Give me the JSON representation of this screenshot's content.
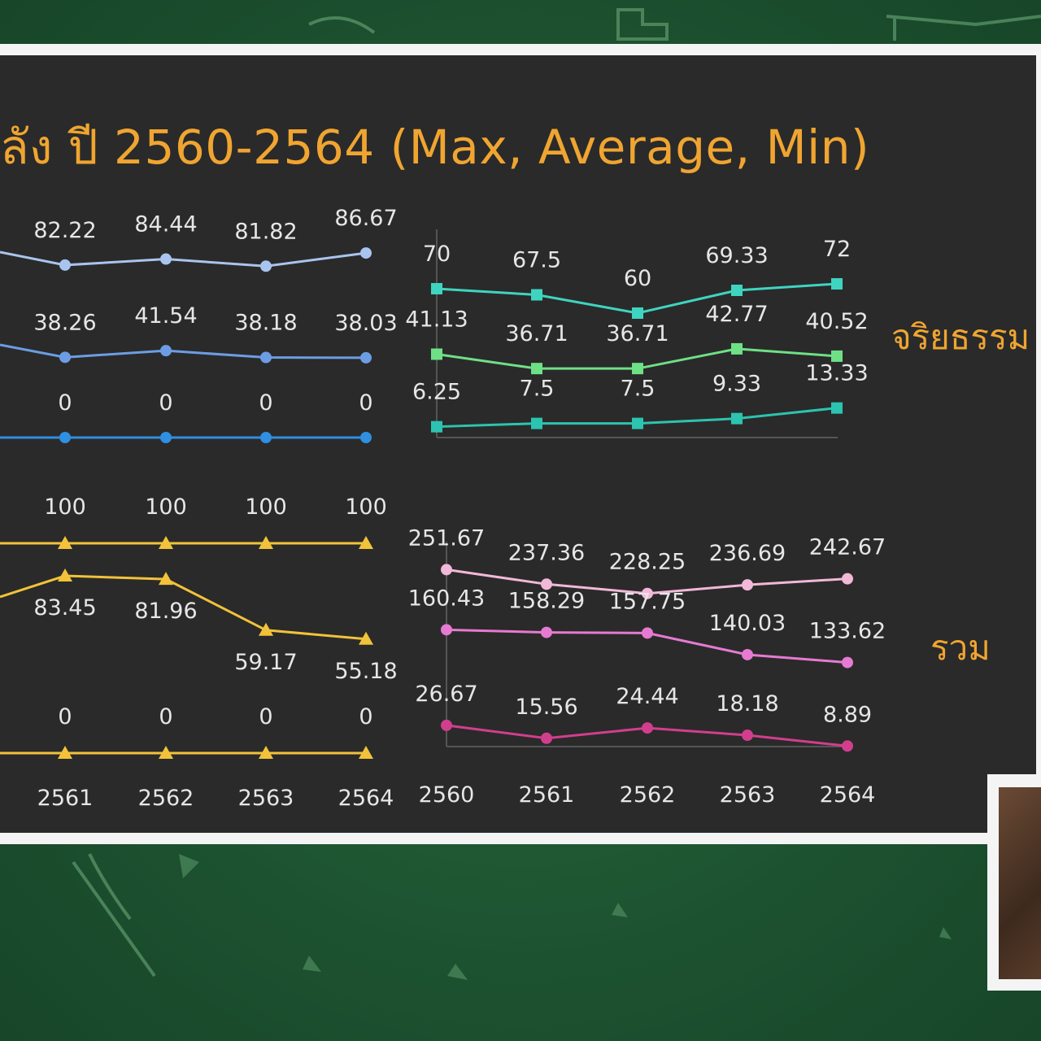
{
  "title": "ลัง ปี 2560-2564 (Max, Average, Min)",
  "colors": {
    "title": "#f0a531",
    "panel": "#2a2a2a",
    "tl_max": "#a9c4ee",
    "tl_avg": "#6c9de4",
    "tl_min": "#2f8fe0",
    "bl": "#f2c23a",
    "tr_max": "#3fd4c0",
    "tr_avg": "#6ee086",
    "tr_min": "#2cc4b0",
    "br_max": "#f2b8d8",
    "br_avg": "#e67ad2",
    "br_min": "#d23e8e"
  },
  "labels": {
    "ethics": "จริยธรรม",
    "total": "รวม"
  },
  "chart_data": [
    {
      "type": "line",
      "categories": [
        "2561",
        "2562",
        "2563",
        "2564"
      ],
      "marker": "circle",
      "series": [
        {
          "key": "max",
          "values": [
            82.22,
            84.44,
            81.82,
            86.67
          ]
        },
        {
          "key": "avg",
          "values": [
            38.26,
            41.54,
            38.18,
            38.03
          ]
        },
        {
          "key": "min",
          "values": [
            0,
            0,
            0,
            0
          ]
        }
      ]
    },
    {
      "type": "line",
      "categories": [
        "2561",
        "2562",
        "2563",
        "2564"
      ],
      "marker": "triangle",
      "series": [
        {
          "key": "max",
          "values": [
            100,
            100,
            100,
            100
          ]
        },
        {
          "key": "avg",
          "values": [
            83.45,
            81.96,
            59.17,
            55.18
          ]
        },
        {
          "key": "min",
          "values": [
            0,
            0,
            0,
            0
          ]
        }
      ]
    },
    {
      "type": "line",
      "categories": [
        "2560",
        "2561",
        "2562",
        "2563",
        "2564"
      ],
      "marker": "square",
      "series": [
        {
          "key": "max",
          "values": [
            70,
            67.5,
            60,
            69.33,
            72
          ]
        },
        {
          "key": "avg",
          "values": [
            41.13,
            36.71,
            36.71,
            42.77,
            40.52
          ]
        },
        {
          "key": "min",
          "values": [
            6.25,
            7.5,
            7.5,
            9.33,
            13.33
          ]
        }
      ]
    },
    {
      "type": "line",
      "categories": [
        "2560",
        "2561",
        "2562",
        "2563",
        "2564"
      ],
      "marker": "circle",
      "series": [
        {
          "key": "max",
          "values": [
            251.67,
            237.36,
            228.25,
            236.69,
            242.67
          ]
        },
        {
          "key": "avg",
          "values": [
            160.43,
            158.29,
            157.75,
            140.03,
            133.62
          ]
        },
        {
          "key": "min",
          "values": [
            26.67,
            15.56,
            24.44,
            18.18,
            8.89
          ]
        }
      ]
    }
  ]
}
